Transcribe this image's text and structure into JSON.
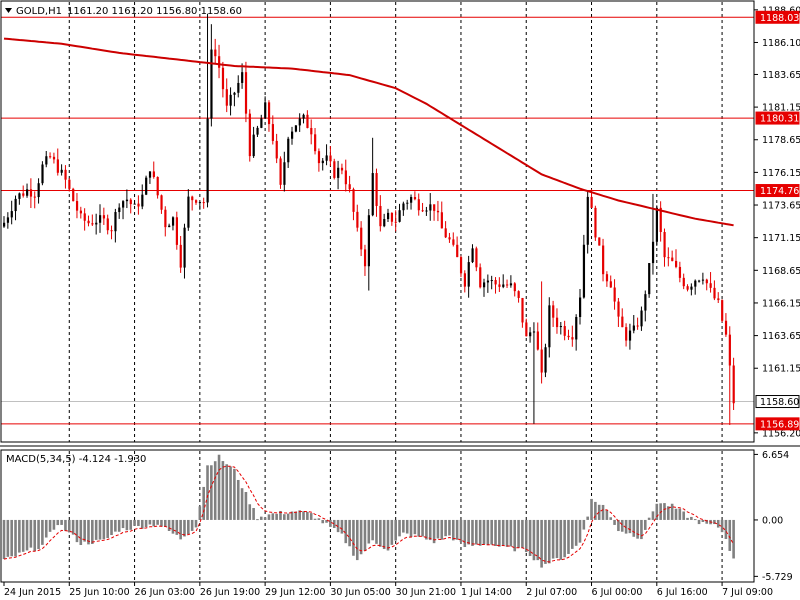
{
  "header": {
    "symbol": "GOLD,H1",
    "ohlc": "1161.20 1161.20 1156.80 1158.60"
  },
  "colors": {
    "bull": "#000000",
    "bear": "#e60000",
    "ma": "#cc0000",
    "hline": "#e60000",
    "hist": "#808080",
    "signal": "#e60000",
    "current": "#c0c0c0"
  },
  "chart_data": {
    "type": "candlestick",
    "price_axis": {
      "range": [
        1155.5,
        1189.2
      ],
      "ticks": [
        "1188.60",
        "1186.10",
        "1183.65",
        "1181.15",
        "1178.65",
        "1176.15",
        "1173.65",
        "1171.15",
        "1168.65",
        "1166.15",
        "1163.65",
        "1161.15",
        "1156.20"
      ]
    },
    "levels": [
      {
        "price": 1188.03,
        "label": "1188.03"
      },
      {
        "price": 1180.31,
        "label": "1180.31"
      },
      {
        "price": 1174.76,
        "label": "1174.76"
      },
      {
        "price": 1156.89,
        "label": "1156.89"
      }
    ],
    "current_price": {
      "price": 1158.6,
      "label": "1158.60"
    },
    "time_axis": [
      "24 Jun 2015",
      "25 Jun 10:00",
      "26 Jun 03:00",
      "26 Jun 19:00",
      "29 Jun 12:00",
      "30 Jun 05:00",
      "30 Jun 21:00",
      "1 Jul 14:00",
      "2 Jul 07:00",
      "6 Jul 00:00",
      "6 Jul 16:00",
      "7 Jul 09:00"
    ],
    "time_axis_bars": [
      0,
      17,
      34,
      51,
      68,
      85,
      102,
      119,
      136,
      153,
      170,
      187
    ],
    "grid": "dashed-vertical",
    "waypoints": [
      [
        0,
        1172.3
      ],
      [
        3,
        1174.2
      ],
      [
        6,
        1174.8
      ],
      [
        8,
        1174.6
      ],
      [
        10,
        1176.6
      ],
      [
        12,
        1177.3
      ],
      [
        14,
        1176.5
      ],
      [
        16,
        1175.5
      ],
      [
        18,
        1174.0
      ],
      [
        20,
        1172.6
      ],
      [
        22,
        1172.3
      ],
      [
        24,
        1172.5
      ],
      [
        26,
        1172.4
      ],
      [
        28,
        1171.9
      ],
      [
        30,
        1173.9
      ],
      [
        32,
        1174.1
      ],
      [
        34,
        1173.4
      ],
      [
        36,
        1174.3
      ],
      [
        38,
        1176.6
      ],
      [
        40,
        1174.4
      ],
      [
        42,
        1172.2
      ],
      [
        44,
        1172.6
      ],
      [
        46,
        1169.3
      ],
      [
        48,
        1174.1
      ],
      [
        50,
        1174.2
      ],
      [
        52,
        1173.9
      ],
      [
        54,
        1185.9
      ],
      [
        56,
        1184.2
      ],
      [
        58,
        1181.0
      ],
      [
        60,
        1182.3
      ],
      [
        62,
        1183.6
      ],
      [
        64,
        1177.8
      ],
      [
        66,
        1179.4
      ],
      [
        68,
        1181.1
      ],
      [
        70,
        1178.8
      ],
      [
        72,
        1174.9
      ],
      [
        74,
        1179.1
      ],
      [
        76,
        1179.9
      ],
      [
        78,
        1180.2
      ],
      [
        80,
        1179.4
      ],
      [
        82,
        1177.0
      ],
      [
        84,
        1177.1
      ],
      [
        86,
        1176.1
      ],
      [
        88,
        1176.5
      ],
      [
        90,
        1174.6
      ],
      [
        92,
        1171.5
      ],
      [
        94,
        1169.3
      ],
      [
        96,
        1176.0
      ],
      [
        98,
        1171.8
      ],
      [
        100,
        1172.7
      ],
      [
        102,
        1172.5
      ],
      [
        104,
        1173.8
      ],
      [
        106,
        1174.2
      ],
      [
        108,
        1173.7
      ],
      [
        110,
        1173.6
      ],
      [
        112,
        1173.5
      ],
      [
        114,
        1171.8
      ],
      [
        116,
        1170.9
      ],
      [
        118,
        1169.5
      ],
      [
        120,
        1167.8
      ],
      [
        122,
        1170.7
      ],
      [
        124,
        1167.7
      ],
      [
        126,
        1167.9
      ],
      [
        128,
        1167.6
      ],
      [
        130,
        1167.6
      ],
      [
        132,
        1167.4
      ],
      [
        134,
        1166.3
      ],
      [
        136,
        1163.4
      ],
      [
        138,
        1164.4
      ],
      [
        140,
        1160.4
      ],
      [
        142,
        1165.6
      ],
      [
        144,
        1164.6
      ],
      [
        146,
        1164.0
      ],
      [
        148,
        1163.8
      ],
      [
        150,
        1166.8
      ],
      [
        152,
        1174.6
      ],
      [
        154,
        1171.6
      ],
      [
        156,
        1168.6
      ],
      [
        158,
        1167.7
      ],
      [
        160,
        1164.7
      ],
      [
        162,
        1163.6
      ],
      [
        164,
        1164.0
      ],
      [
        166,
        1165.3
      ],
      [
        168,
        1168.8
      ],
      [
        170,
        1173.2
      ],
      [
        172,
        1169.6
      ],
      [
        174,
        1169.2
      ],
      [
        176,
        1168.1
      ],
      [
        178,
        1167.4
      ],
      [
        180,
        1168.0
      ],
      [
        182,
        1168.3
      ],
      [
        184,
        1167.0
      ],
      [
        186,
        1166.0
      ],
      [
        188,
        1163.6
      ],
      [
        190,
        1158.6
      ]
    ],
    "spikes": [
      {
        "bar": 53,
        "high": 1188.3
      },
      {
        "bar": 54,
        "high": 1187.5
      },
      {
        "bar": 62,
        "high": 1184.5
      },
      {
        "bar": 95,
        "low": 1167.1
      },
      {
        "bar": 96,
        "high": 1178.8
      },
      {
        "bar": 138,
        "low": 1156.9
      },
      {
        "bar": 140,
        "high": 1167.8
      },
      {
        "bar": 152,
        "high": 1174.8
      },
      {
        "bar": 169,
        "high": 1174.5
      },
      {
        "bar": 189,
        "low": 1156.8
      }
    ],
    "moving_average": {
      "x": [
        0,
        15,
        30,
        45,
        60,
        75,
        90,
        102,
        110,
        120,
        130,
        140,
        150,
        160,
        170,
        180,
        190
      ],
      "y": [
        1186.4,
        1186.0,
        1185.3,
        1184.8,
        1184.3,
        1184.1,
        1183.6,
        1182.6,
        1181.4,
        1179.6,
        1177.8,
        1176.0,
        1174.9,
        1174.0,
        1173.3,
        1172.6,
        1172.1
      ]
    },
    "macd": {
      "label": "MACD(5,34,5) -4.124 -1.930",
      "ticks": [
        "6.654",
        "0.00",
        "-5.729"
      ],
      "range": [
        -6.2,
        7.0
      ],
      "hist_waypoints": [
        [
          0,
          -4.1
        ],
        [
          10,
          -2.6
        ],
        [
          14,
          -0.3
        ],
        [
          20,
          -2.4
        ],
        [
          26,
          -2.1
        ],
        [
          30,
          -1.0
        ],
        [
          40,
          -0.4
        ],
        [
          46,
          -1.9
        ],
        [
          50,
          -0.6
        ],
        [
          53,
          5.5
        ],
        [
          56,
          6.4
        ],
        [
          60,
          5.0
        ],
        [
          64,
          1.8
        ],
        [
          66,
          0.3
        ],
        [
          70,
          0.6
        ],
        [
          76,
          0.9
        ],
        [
          80,
          0.6
        ],
        [
          84,
          -0.5
        ],
        [
          88,
          -1.6
        ],
        [
          92,
          -4.0
        ],
        [
          96,
          -2.1
        ],
        [
          100,
          -3.0
        ],
        [
          104,
          -1.4
        ],
        [
          108,
          -1.7
        ],
        [
          112,
          -2.2
        ],
        [
          116,
          -1.6
        ],
        [
          120,
          -2.7
        ],
        [
          126,
          -2.4
        ],
        [
          130,
          -2.8
        ],
        [
          136,
          -3.1
        ],
        [
          140,
          -4.6
        ],
        [
          146,
          -3.7
        ],
        [
          150,
          -2.3
        ],
        [
          153,
          2.0
        ],
        [
          156,
          1.5
        ],
        [
          160,
          -1.0
        ],
        [
          166,
          -1.8
        ],
        [
          170,
          1.8
        ],
        [
          174,
          1.4
        ],
        [
          178,
          0.4
        ],
        [
          182,
          -0.4
        ],
        [
          186,
          -0.7
        ],
        [
          188,
          -1.8
        ],
        [
          190,
          -4.1
        ]
      ]
    }
  }
}
